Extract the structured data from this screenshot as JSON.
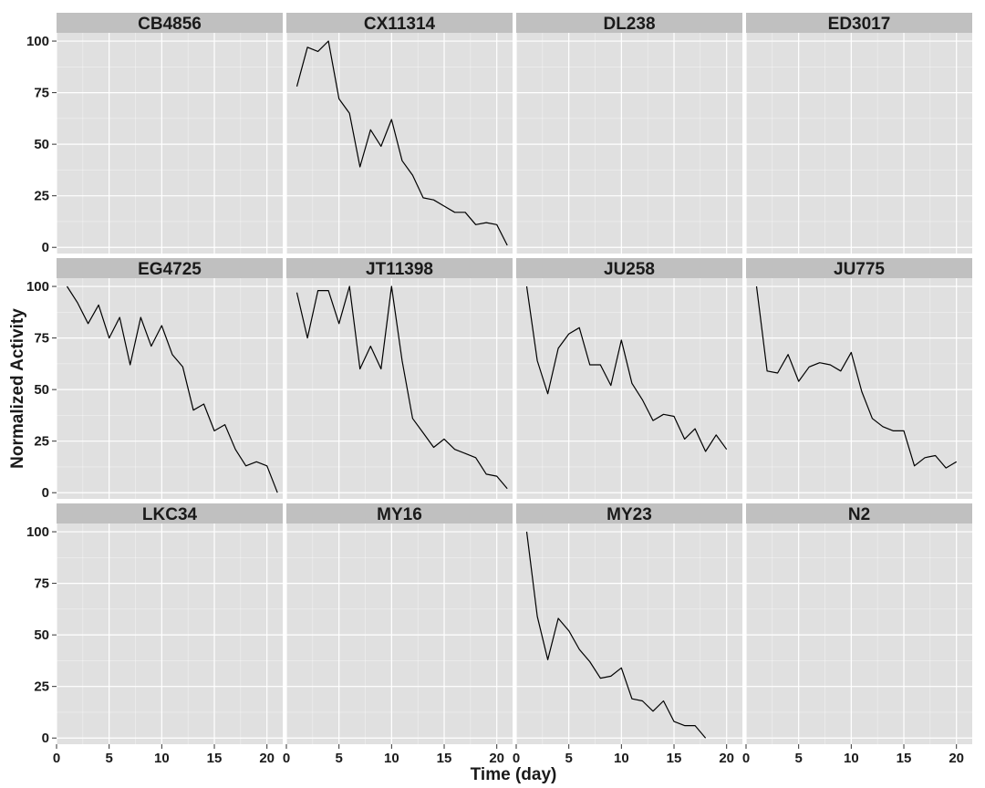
{
  "chart_data": {
    "type": "line",
    "layout": "facet-grid 3x4",
    "xlabel": "Time (day)",
    "ylabel": "Normalized Activity",
    "xlim": [
      0,
      21.5
    ],
    "ylim": [
      -3,
      104
    ],
    "x_ticks": [
      0,
      5,
      10,
      15,
      20
    ],
    "y_ticks": [
      0,
      25,
      50,
      75,
      100
    ],
    "grid": true,
    "panel_background": "#e0e0e0",
    "strip_background": "#c0c0c0",
    "grid_color": "#ffffff",
    "line_color": "#000000",
    "facets": [
      {
        "name": "CB4856",
        "x": [],
        "y": []
      },
      {
        "name": "CX11314",
        "x": [
          1,
          2,
          3,
          4,
          5,
          6,
          7,
          8,
          9,
          10,
          11,
          12,
          13,
          14,
          15,
          16,
          17,
          18,
          19,
          20,
          21
        ],
        "y": [
          78,
          97,
          95,
          100,
          72,
          65,
          39,
          57,
          49,
          62,
          42,
          35,
          24,
          23,
          20,
          17,
          17,
          11,
          12,
          11,
          1
        ]
      },
      {
        "name": "DL238",
        "x": [],
        "y": []
      },
      {
        "name": "ED3017",
        "x": [],
        "y": []
      },
      {
        "name": "EG4725",
        "x": [
          1,
          2,
          3,
          4,
          5,
          6,
          7,
          8,
          9,
          10,
          11,
          12,
          13,
          14,
          15,
          16,
          17,
          18,
          19,
          20,
          21
        ],
        "y": [
          100,
          92,
          82,
          91,
          75,
          85,
          62,
          85,
          71,
          81,
          67,
          61,
          40,
          43,
          30,
          33,
          21,
          13,
          15,
          13,
          0
        ]
      },
      {
        "name": "JT11398",
        "x": [
          1,
          2,
          3,
          4,
          5,
          6,
          7,
          8,
          9,
          10,
          11,
          12,
          13,
          14,
          15,
          16,
          17,
          18,
          19,
          20,
          21
        ],
        "y": [
          97,
          75,
          98,
          98,
          82,
          100,
          60,
          71,
          60,
          100,
          64,
          36,
          29,
          22,
          26,
          21,
          19,
          17,
          9,
          8,
          2
        ]
      },
      {
        "name": "JU258",
        "x": [
          1,
          2,
          3,
          4,
          5,
          6,
          7,
          8,
          9,
          10,
          11,
          12,
          13,
          14,
          15,
          16,
          17,
          18,
          19,
          20
        ],
        "y": [
          100,
          64,
          48,
          70,
          77,
          80,
          62,
          62,
          52,
          74,
          53,
          45,
          35,
          38,
          37,
          26,
          31,
          20,
          28,
          21
        ]
      },
      {
        "name": "JU775",
        "x": [
          1,
          2,
          3,
          4,
          5,
          6,
          7,
          8,
          9,
          10,
          11,
          12,
          13,
          14,
          15,
          16,
          17,
          18,
          19,
          20
        ],
        "y": [
          100,
          59,
          58,
          67,
          54,
          61,
          63,
          62,
          59,
          68,
          49,
          36,
          32,
          30,
          30,
          13,
          17,
          18,
          12,
          15
        ]
      },
      {
        "name": "LKC34",
        "x": [],
        "y": []
      },
      {
        "name": "MY16",
        "x": [],
        "y": []
      },
      {
        "name": "MY23",
        "x": [
          1,
          2,
          3,
          4,
          5,
          6,
          7,
          8,
          9,
          10,
          11,
          12,
          13,
          14,
          15,
          16,
          17,
          18
        ],
        "y": [
          100,
          59,
          38,
          58,
          52,
          43,
          37,
          29,
          30,
          34,
          19,
          18,
          13,
          18,
          8,
          6,
          6,
          0
        ]
      },
      {
        "name": "N2",
        "x": [],
        "y": []
      }
    ]
  }
}
